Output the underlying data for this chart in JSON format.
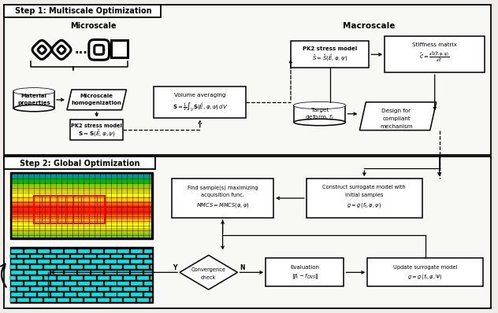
{
  "bg": "#f0ede8",
  "white": "#ffffff",
  "black": "#000000",
  "grid_colors": [
    "#00cccc",
    "#00dd00",
    "#aadd00",
    "#ffff00",
    "#ffcc00",
    "#ff6600",
    "#ff0000",
    "#ff0000",
    "#ff3300",
    "#ffaa00",
    "#ffff00",
    "#aadd00",
    "#00dd00",
    "#00cccc"
  ],
  "cyan": "#00e5e5"
}
